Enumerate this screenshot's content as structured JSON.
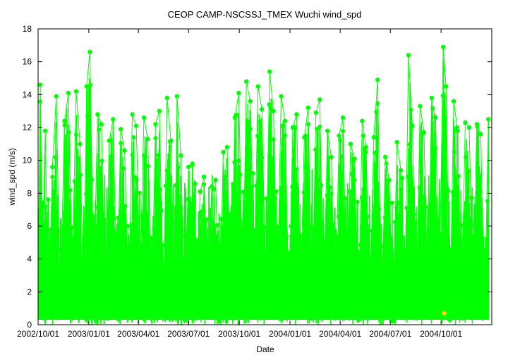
{
  "chart_data": {
    "type": "line",
    "title": "CEOP CAMP-NSCSSJ_TMEX Wuchi  wind_spd",
    "xlabel": "Date",
    "ylabel": "wind_spd (m/s)",
    "ylim": [
      0,
      18
    ],
    "yticks": [
      0,
      2,
      4,
      6,
      8,
      10,
      12,
      14,
      16,
      18
    ],
    "xlim": [
      "2002-10-01",
      "2005-01-01"
    ],
    "xtick_labels": [
      {
        "date": "2002-10-01",
        "label": "2002/10/01"
      },
      {
        "date": "2003-01-01",
        "label": "2003/01/01"
      },
      {
        "date": "2003-04-01",
        "label": "2003/04/01"
      },
      {
        "date": "2003-07-01",
        "label": "2003/07/01"
      },
      {
        "date": "2003-10-01",
        "label": "2003/10/01"
      },
      {
        "date": "2004-01-01",
        "label": "2004/01/01"
      },
      {
        "date": "2004-04-01",
        "label": "2004/04/01"
      },
      {
        "date": "2004-07-01",
        "label": "2004/07/01"
      },
      {
        "date": "2004-10-01",
        "label": "2004/10/01"
      }
    ],
    "grid": false,
    "series": [
      {
        "color": "#00ff00",
        "marker": "circle",
        "points": [
          [
            "2002-10-01",
            2.1
          ],
          [
            "2002-10-05",
            14.6
          ],
          [
            "2002-10-09",
            4.3
          ],
          [
            "2002-10-14",
            11.8
          ],
          [
            "2002-10-20",
            0.5
          ],
          [
            "2002-10-27",
            9.6
          ],
          [
            "2002-11-03",
            13.9
          ],
          [
            "2002-11-10",
            1.2
          ],
          [
            "2002-11-18",
            12.4
          ],
          [
            "2002-11-25",
            14.1
          ],
          [
            "2002-12-02",
            3.0
          ],
          [
            "2002-12-09",
            14.2
          ],
          [
            "2002-12-16",
            11.0
          ],
          [
            "2002-12-23",
            0.8
          ],
          [
            "2002-12-28",
            14.5
          ],
          [
            "2003-01-03",
            16.6
          ],
          [
            "2003-01-10",
            2.5
          ],
          [
            "2003-01-17",
            12.8
          ],
          [
            "2003-01-24",
            12.2
          ],
          [
            "2003-01-31",
            0.6
          ],
          [
            "2003-02-07",
            11.2
          ],
          [
            "2003-02-14",
            12.5
          ],
          [
            "2003-02-21",
            1.4
          ],
          [
            "2003-02-28",
            11.9
          ],
          [
            "2003-03-07",
            10.6
          ],
          [
            "2003-03-14",
            0.9
          ],
          [
            "2003-03-21",
            12.8
          ],
          [
            "2003-03-28",
            12.1
          ],
          [
            "2003-04-04",
            3.2
          ],
          [
            "2003-04-11",
            12.6
          ],
          [
            "2003-04-18",
            11.3
          ],
          [
            "2003-04-25",
            0.4
          ],
          [
            "2003-05-02",
            12.2
          ],
          [
            "2003-05-09",
            13.0
          ],
          [
            "2003-05-16",
            1.1
          ],
          [
            "2003-05-23",
            13.8
          ],
          [
            "2003-05-30",
            11.2
          ],
          [
            "2003-06-06",
            0.7
          ],
          [
            "2003-06-10",
            13.9
          ],
          [
            "2003-06-17",
            10.3
          ],
          [
            "2003-06-24",
            0.3
          ],
          [
            "2003-07-01",
            9.6
          ],
          [
            "2003-07-08",
            9.8
          ],
          [
            "2003-07-15",
            0.5
          ],
          [
            "2003-07-22",
            8.1
          ],
          [
            "2003-07-29",
            9.0
          ],
          [
            "2003-08-05",
            0.6
          ],
          [
            "2003-08-12",
            8.4
          ],
          [
            "2003-08-19",
            8.8
          ],
          [
            "2003-08-26",
            0.2
          ],
          [
            "2003-09-02",
            10.5
          ],
          [
            "2003-09-09",
            10.8
          ],
          [
            "2003-09-16",
            0.9
          ],
          [
            "2003-09-23",
            12.6
          ],
          [
            "2003-09-30",
            14.1
          ],
          [
            "2003-10-07",
            1.6
          ],
          [
            "2003-10-14",
            14.8
          ],
          [
            "2003-10-21",
            13.6
          ],
          [
            "2003-10-28",
            2.9
          ],
          [
            "2003-11-04",
            14.5
          ],
          [
            "2003-11-11",
            13.1
          ],
          [
            "2003-11-18",
            2.2
          ],
          [
            "2003-11-25",
            15.4
          ],
          [
            "2003-12-02",
            13.0
          ],
          [
            "2003-12-09",
            1.8
          ],
          [
            "2003-12-16",
            13.9
          ],
          [
            "2003-12-23",
            12.4
          ],
          [
            "2003-12-30",
            0.8
          ],
          [
            "2004-01-06",
            12.0
          ],
          [
            "2004-01-13",
            12.8
          ],
          [
            "2004-01-20",
            1.5
          ],
          [
            "2004-01-27",
            11.4
          ],
          [
            "2004-02-03",
            13.2
          ],
          [
            "2004-02-10",
            0.6
          ],
          [
            "2004-02-17",
            12.9
          ],
          [
            "2004-02-24",
            13.7
          ],
          [
            "2004-03-02",
            1.2
          ],
          [
            "2004-03-09",
            11.8
          ],
          [
            "2004-03-16",
            10.2
          ],
          [
            "2004-03-23",
            0.4
          ],
          [
            "2004-03-30",
            11.5
          ],
          [
            "2004-04-06",
            12.6
          ],
          [
            "2004-04-13",
            0.9
          ],
          [
            "2004-04-20",
            11.0
          ],
          [
            "2004-04-27",
            10.1
          ],
          [
            "2004-05-04",
            0.3
          ],
          [
            "2004-05-11",
            12.4
          ],
          [
            "2004-05-18",
            10.8
          ],
          [
            "2004-05-25",
            0.7
          ],
          [
            "2004-06-01",
            11.4
          ],
          [
            "2004-06-08",
            14.9
          ],
          [
            "2004-06-15",
            0.5
          ],
          [
            "2004-06-22",
            10.2
          ],
          [
            "2004-06-29",
            8.8
          ],
          [
            "2004-07-06",
            0.2
          ],
          [
            "2004-07-13",
            11.1
          ],
          [
            "2004-07-20",
            9.4
          ],
          [
            "2004-07-27",
            0.6
          ],
          [
            "2004-08-03",
            16.4
          ],
          [
            "2004-08-10",
            12.1
          ],
          [
            "2004-08-17",
            0.4
          ],
          [
            "2004-08-24",
            13.3
          ],
          [
            "2004-08-31",
            11.7
          ],
          [
            "2004-09-07",
            0.8
          ],
          [
            "2004-09-14",
            13.8
          ],
          [
            "2004-09-21",
            12.6
          ],
          [
            "2004-09-28",
            2.6
          ],
          [
            "2004-10-05",
            16.9
          ],
          [
            "2004-10-10",
            14.5
          ],
          [
            "2004-10-17",
            0.3
          ],
          [
            "2004-10-24",
            13.6
          ],
          [
            "2004-10-31",
            11.8
          ],
          [
            "2004-11-07",
            0.9
          ],
          [
            "2004-11-14",
            12.3
          ],
          [
            "2004-11-21",
            12.0
          ],
          [
            "2004-11-28",
            1.4
          ],
          [
            "2004-12-05",
            12.2
          ],
          [
            "2004-12-12",
            11.6
          ],
          [
            "2004-12-19",
            0.6
          ],
          [
            "2004-12-26",
            12.5
          ]
        ]
      },
      {
        "color": "#ffd700",
        "marker": "diamond",
        "points": [
          [
            "2004-10-07",
            0.7
          ]
        ]
      }
    ]
  }
}
